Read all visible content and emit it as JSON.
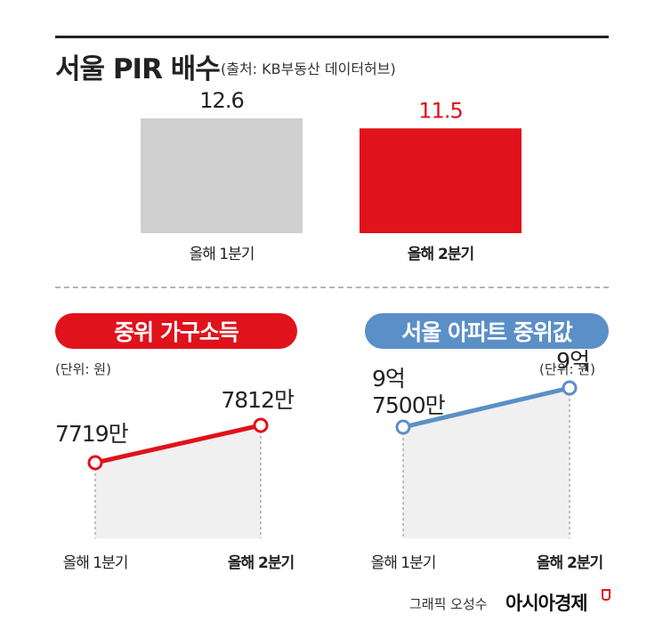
{
  "header": {
    "title": "서울 PIR 배수",
    "source": "(출처: KB부동산 데이터허브)"
  },
  "pills": {
    "income": "중위 가구소득",
    "apartment": "서울 아파트 중위값"
  },
  "units": {
    "left": "(단위: 원)",
    "right": "(단위: 원)"
  },
  "footer": {
    "credit": "그래픽 오성수",
    "logo": "아시아경제"
  },
  "colors": {
    "red": "#e0121c",
    "blue": "#5b8fc7",
    "gray_bar": "#cfcfcf",
    "fill": "#f0f0f0"
  },
  "chart_data": [
    {
      "type": "bar",
      "title": "서울 PIR 배수",
      "categories": [
        "올해 1분기",
        "올해 2분기"
      ],
      "values": [
        12.6,
        11.5
      ],
      "value_labels": [
        "12.6",
        "11.5"
      ],
      "bar_colors": [
        "#cfcfcf",
        "#e0121c"
      ]
    },
    {
      "type": "line",
      "title": "중위 가구소득",
      "categories": [
        "올해 1분기",
        "올해 2분기"
      ],
      "values": [
        7719,
        7812
      ],
      "value_labels": [
        "7719만",
        "7812만"
      ],
      "unit": "(단위: 원)"
    },
    {
      "type": "line",
      "title": "서울 아파트 중위값",
      "categories": [
        "올해 1분기",
        "올해 2분기"
      ],
      "values": [
        97500,
        90000
      ],
      "value_labels": [
        [
          "9억",
          "7500만"
        ],
        [
          "9억"
        ]
      ],
      "unit": "(단위: 원)"
    }
  ]
}
